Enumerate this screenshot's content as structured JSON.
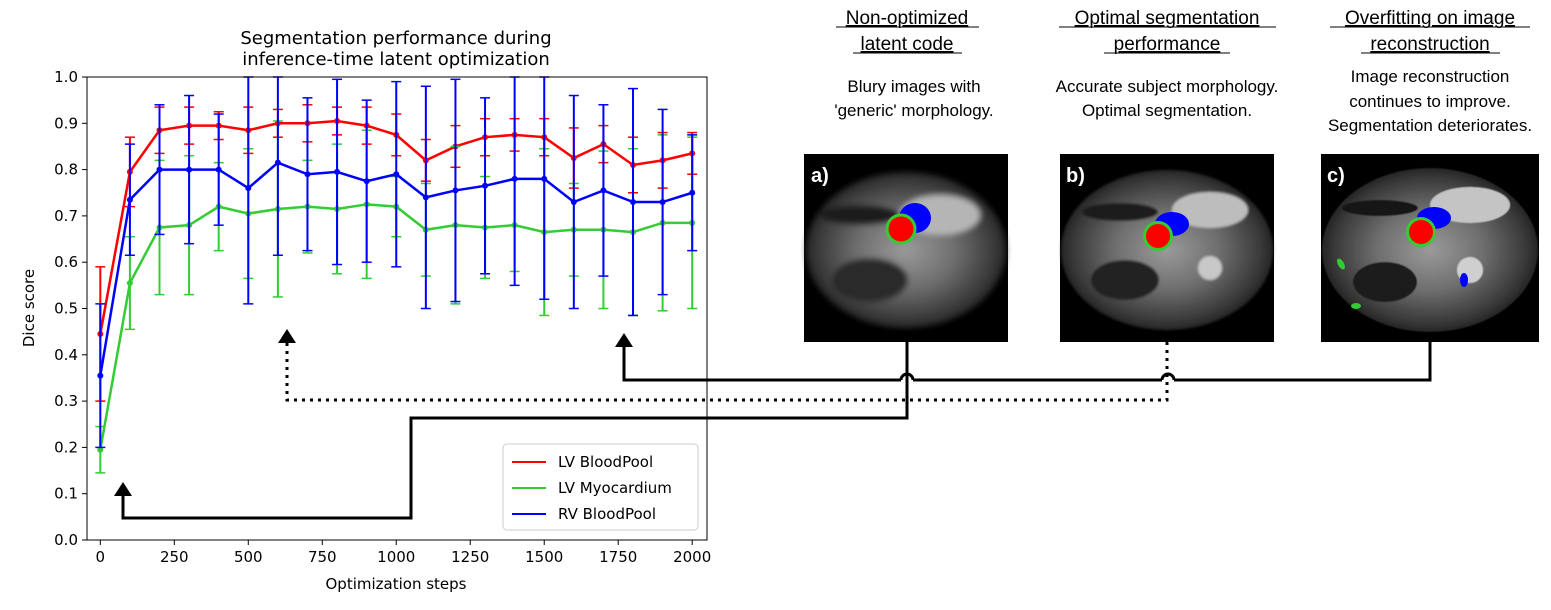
{
  "chart_data": {
    "type": "line",
    "title_line1": "Segmentation performance during",
    "title_line2": "inference-time latent optimization",
    "xlabel": "Optimization steps",
    "ylabel": "Dice score",
    "xlim": [
      -45,
      2050
    ],
    "ylim": [
      0.0,
      1.0
    ],
    "xticks": [
      0,
      250,
      500,
      750,
      1000,
      1250,
      1500,
      1750,
      2000
    ],
    "yticks": [
      0.0,
      0.1,
      0.2,
      0.3,
      0.4,
      0.5,
      0.6,
      0.7,
      0.8,
      0.9,
      1.0
    ],
    "ytick_labels": [
      "0.0",
      "0.1",
      "0.2",
      "0.3",
      "0.4",
      "0.5",
      "0.6",
      "0.7",
      "0.8",
      "0.9",
      "1.0"
    ],
    "legend_position": "lower right",
    "x": [
      0,
      100,
      200,
      300,
      400,
      500,
      600,
      700,
      800,
      900,
      1000,
      1100,
      1200,
      1300,
      1400,
      1500,
      1600,
      1700,
      1800,
      1900,
      2000
    ],
    "series": [
      {
        "name": "LV BloodPool",
        "color": "#ff0000",
        "values": [
          0.445,
          0.795,
          0.885,
          0.895,
          0.895,
          0.885,
          0.9,
          0.9,
          0.905,
          0.895,
          0.875,
          0.82,
          0.85,
          0.87,
          0.875,
          0.87,
          0.825,
          0.855,
          0.81,
          0.82,
          0.835
        ],
        "err": [
          0.145,
          0.075,
          0.05,
          0.04,
          0.03,
          0.05,
          0.03,
          0.04,
          0.03,
          0.04,
          0.045,
          0.045,
          0.045,
          0.04,
          0.035,
          0.04,
          0.065,
          0.04,
          0.06,
          0.06,
          0.045
        ]
      },
      {
        "name": "LV Myocardium",
        "color": "#33cc33",
        "values": [
          0.195,
          0.555,
          0.675,
          0.68,
          0.72,
          0.705,
          0.715,
          0.72,
          0.715,
          0.725,
          0.72,
          0.67,
          0.68,
          0.675,
          0.68,
          0.665,
          0.67,
          0.67,
          0.665,
          0.685,
          0.685
        ],
        "err": [
          0.05,
          0.1,
          0.145,
          0.15,
          0.095,
          0.14,
          0.19,
          0.1,
          0.14,
          0.16,
          0.065,
          0.1,
          0.17,
          0.11,
          0.1,
          0.18,
          0.1,
          0.17,
          0.18,
          0.19,
          0.185
        ]
      },
      {
        "name": "RV BloodPool",
        "color": "#0000ff",
        "values": [
          0.355,
          0.735,
          0.8,
          0.8,
          0.8,
          0.76,
          0.815,
          0.79,
          0.795,
          0.775,
          0.79,
          0.74,
          0.755,
          0.765,
          0.78,
          0.78,
          0.73,
          0.755,
          0.73,
          0.73,
          0.75
        ],
        "err": [
          0.155,
          0.12,
          0.14,
          0.16,
          0.12,
          0.25,
          0.2,
          0.165,
          0.2,
          0.175,
          0.2,
          0.24,
          0.24,
          0.19,
          0.23,
          0.26,
          0.23,
          0.185,
          0.245,
          0.2,
          0.125
        ]
      }
    ]
  },
  "panels": [
    {
      "id": "a",
      "letter": "a)",
      "heading_line1": "Non-optimized",
      "heading_line2": "latent code",
      "desc_line1": "Blury images with",
      "desc_line2": "'generic' morphology.",
      "desc_line3": ""
    },
    {
      "id": "b",
      "letter": "b)",
      "heading_line1": "Optimal segmentation",
      "heading_line2": "performance",
      "desc_line1": "Accurate subject morphology.",
      "desc_line2": "Optimal segmentation.",
      "desc_line3": ""
    },
    {
      "id": "c",
      "letter": "c)",
      "heading_line1": "Overfitting on image",
      "heading_line2": "reconstruction",
      "desc_line1": "Image reconstruction",
      "desc_line2": "continues to improve.",
      "desc_line3": "Segmentation deteriorates."
    }
  ],
  "colors": {
    "lv_bloodpool": "#ff0000",
    "lv_myocardium": "#33cc33",
    "rv_bloodpool": "#0000ff",
    "mri_background": "#000000"
  }
}
